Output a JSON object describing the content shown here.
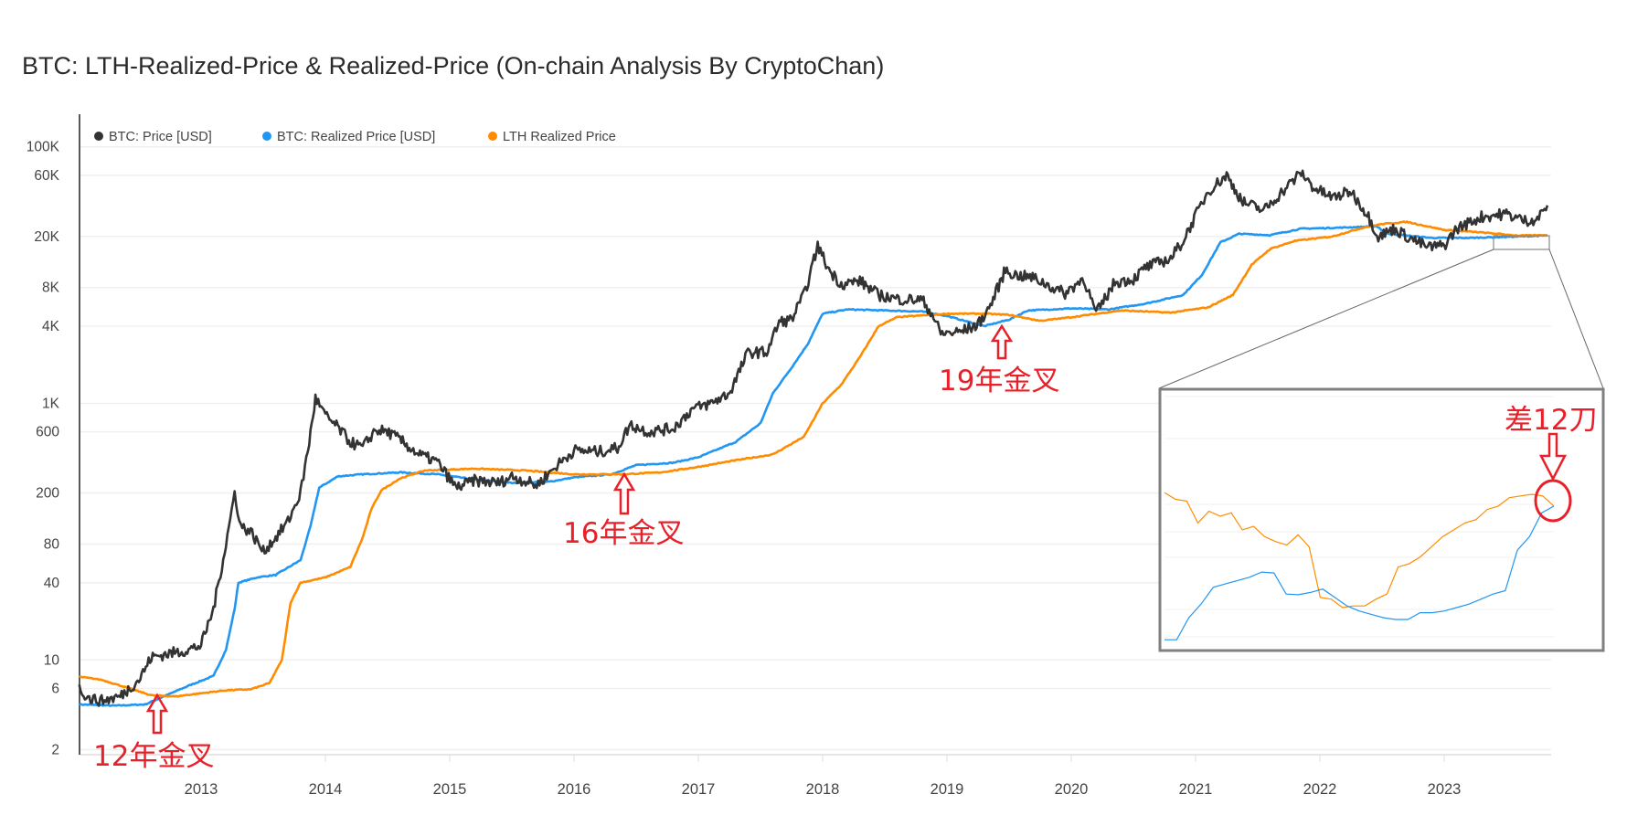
{
  "chart_data": {
    "type": "line",
    "title": "BTC: LTH-Realized-Price & Realized-Price (On-chain Analysis By CryptoChan)",
    "y_scale": "log",
    "ylim": [
      1.7,
      150000
    ],
    "xlim": [
      2012.02,
      2023.86
    ],
    "grid": true,
    "legend_position": "top-left",
    "y_ticks": [
      {
        "label": "100K",
        "value": 100000
      },
      {
        "label": "60K",
        "value": 60000
      },
      {
        "label": "20K",
        "value": 20000
      },
      {
        "label": "8K",
        "value": 8000
      },
      {
        "label": "4K",
        "value": 4000
      },
      {
        "label": "1K",
        "value": 1000
      },
      {
        "label": "600",
        "value": 600
      },
      {
        "label": "200",
        "value": 200
      },
      {
        "label": "80",
        "value": 80
      },
      {
        "label": "40",
        "value": 40
      },
      {
        "label": "10",
        "value": 10
      },
      {
        "label": "6",
        "value": 6
      },
      {
        "label": "2",
        "value": 2
      }
    ],
    "x_ticks": [
      "2013",
      "2014",
      "2015",
      "2016",
      "2017",
      "2018",
      "2019",
      "2020",
      "2021",
      "2022",
      "2023"
    ],
    "series": [
      {
        "name": "BTC: Price [USD]",
        "color": "#333333",
        "points": [
          [
            2012.02,
            6
          ],
          [
            2012.1,
            5
          ],
          [
            2012.2,
            4.8
          ],
          [
            2012.35,
            5.2
          ],
          [
            2012.5,
            7
          ],
          [
            2012.6,
            10.5
          ],
          [
            2012.7,
            11
          ],
          [
            2012.9,
            12
          ],
          [
            2013.0,
            13
          ],
          [
            2013.1,
            25
          ],
          [
            2013.2,
            80
          ],
          [
            2013.27,
            200
          ],
          [
            2013.32,
            110
          ],
          [
            2013.4,
            100
          ],
          [
            2013.5,
            70
          ],
          [
            2013.6,
            90
          ],
          [
            2013.7,
            120
          ],
          [
            2013.8,
            200
          ],
          [
            2013.87,
            500
          ],
          [
            2013.92,
            1100
          ],
          [
            2014.0,
            800
          ],
          [
            2014.1,
            650
          ],
          [
            2014.2,
            500
          ],
          [
            2014.3,
            450
          ],
          [
            2014.4,
            620
          ],
          [
            2014.5,
            600
          ],
          [
            2014.6,
            520
          ],
          [
            2014.75,
            400
          ],
          [
            2014.9,
            350
          ],
          [
            2015.05,
            220
          ],
          [
            2015.2,
            250
          ],
          [
            2015.4,
            240
          ],
          [
            2015.5,
            270
          ],
          [
            2015.7,
            230
          ],
          [
            2015.85,
            320
          ],
          [
            2016.0,
            430
          ],
          [
            2016.2,
            420
          ],
          [
            2016.35,
            450
          ],
          [
            2016.45,
            680
          ],
          [
            2016.6,
            600
          ],
          [
            2016.8,
            640
          ],
          [
            2016.95,
            900
          ],
          [
            2017.1,
            1000
          ],
          [
            2017.25,
            1200
          ],
          [
            2017.4,
            2500
          ],
          [
            2017.55,
            2500
          ],
          [
            2017.65,
            4300
          ],
          [
            2017.75,
            4500
          ],
          [
            2017.85,
            7000
          ],
          [
            2017.92,
            12000
          ],
          [
            2017.96,
            17000
          ],
          [
            2018.05,
            11000
          ],
          [
            2018.15,
            8500
          ],
          [
            2018.3,
            9000
          ],
          [
            2018.45,
            7000
          ],
          [
            2018.6,
            6500
          ],
          [
            2018.8,
            6400
          ],
          [
            2018.88,
            5000
          ],
          [
            2018.95,
            3500
          ],
          [
            2019.1,
            3600
          ],
          [
            2019.25,
            4100
          ],
          [
            2019.35,
            5800
          ],
          [
            2019.47,
            11000
          ],
          [
            2019.55,
            10000
          ],
          [
            2019.7,
            9500
          ],
          [
            2019.85,
            8000
          ],
          [
            2019.95,
            7200
          ],
          [
            2020.1,
            9500
          ],
          [
            2020.2,
            5000
          ],
          [
            2020.35,
            8800
          ],
          [
            2020.5,
            9300
          ],
          [
            2020.6,
            11500
          ],
          [
            2020.8,
            13500
          ],
          [
            2020.9,
            18500
          ],
          [
            2021.0,
            29000
          ],
          [
            2021.1,
            45000
          ],
          [
            2021.25,
            60000
          ],
          [
            2021.38,
            37000
          ],
          [
            2021.55,
            32000
          ],
          [
            2021.7,
            45000
          ],
          [
            2021.85,
            63000
          ],
          [
            2021.95,
            48000
          ],
          [
            2022.1,
            40000
          ],
          [
            2022.25,
            45000
          ],
          [
            2022.38,
            30000
          ],
          [
            2022.47,
            20000
          ],
          [
            2022.6,
            23000
          ],
          [
            2022.72,
            19500
          ],
          [
            2022.87,
            16500
          ],
          [
            2023.0,
            17000
          ],
          [
            2023.1,
            23000
          ],
          [
            2023.3,
            28500
          ],
          [
            2023.5,
            30000
          ],
          [
            2023.65,
            26500
          ],
          [
            2023.75,
            27500
          ],
          [
            2023.83,
            35000
          ]
        ]
      },
      {
        "name": "BTC: Realized Price [USD]",
        "color": "#2196f3",
        "points": [
          [
            2012.02,
            4.5
          ],
          [
            2012.3,
            4.4
          ],
          [
            2012.55,
            4.5
          ],
          [
            2012.7,
            5.2
          ],
          [
            2012.9,
            6.3
          ],
          [
            2013.1,
            7.5
          ],
          [
            2013.2,
            12
          ],
          [
            2013.27,
            25
          ],
          [
            2013.3,
            40
          ],
          [
            2013.45,
            44
          ],
          [
            2013.6,
            46
          ],
          [
            2013.8,
            60
          ],
          [
            2013.88,
            110
          ],
          [
            2013.95,
            220
          ],
          [
            2014.1,
            270
          ],
          [
            2014.3,
            280
          ],
          [
            2014.6,
            290
          ],
          [
            2014.9,
            280
          ],
          [
            2015.2,
            255
          ],
          [
            2015.5,
            240
          ],
          [
            2015.8,
            245
          ],
          [
            2016.0,
            265
          ],
          [
            2016.3,
            280
          ],
          [
            2016.5,
            330
          ],
          [
            2016.8,
            345
          ],
          [
            2017.0,
            380
          ],
          [
            2017.3,
            500
          ],
          [
            2017.5,
            700
          ],
          [
            2017.6,
            1200
          ],
          [
            2017.75,
            1900
          ],
          [
            2017.88,
            2900
          ],
          [
            2018.0,
            5000
          ],
          [
            2018.2,
            5400
          ],
          [
            2018.5,
            5300
          ],
          [
            2018.8,
            5200
          ],
          [
            2019.0,
            4800
          ],
          [
            2019.3,
            4000
          ],
          [
            2019.5,
            4500
          ],
          [
            2019.65,
            5300
          ],
          [
            2020.0,
            5500
          ],
          [
            2020.3,
            5400
          ],
          [
            2020.6,
            6000
          ],
          [
            2020.9,
            7000
          ],
          [
            2021.05,
            10000
          ],
          [
            2021.2,
            18000
          ],
          [
            2021.35,
            21000
          ],
          [
            2021.6,
            20500
          ],
          [
            2021.85,
            23000
          ],
          [
            2022.2,
            23500
          ],
          [
            2022.45,
            24000
          ],
          [
            2022.55,
            21000
          ],
          [
            2022.9,
            19500
          ],
          [
            2023.2,
            19500
          ],
          [
            2023.6,
            20000
          ],
          [
            2023.83,
            20400
          ]
        ]
      },
      {
        "name": "LTH Realized Price",
        "color": "#ff8c00",
        "points": [
          [
            2012.02,
            7.4
          ],
          [
            2012.2,
            7
          ],
          [
            2012.4,
            6.1
          ],
          [
            2012.6,
            5.3
          ],
          [
            2012.8,
            5.2
          ],
          [
            2013.0,
            5.5
          ],
          [
            2013.2,
            5.8
          ],
          [
            2013.4,
            5.9
          ],
          [
            2013.55,
            6.6
          ],
          [
            2013.65,
            10
          ],
          [
            2013.72,
            28
          ],
          [
            2013.8,
            40
          ],
          [
            2014.0,
            44
          ],
          [
            2014.2,
            53
          ],
          [
            2014.3,
            90
          ],
          [
            2014.37,
            150
          ],
          [
            2014.45,
            210
          ],
          [
            2014.6,
            260
          ],
          [
            2014.8,
            300
          ],
          [
            2015.2,
            310
          ],
          [
            2015.6,
            300
          ],
          [
            2016.0,
            280
          ],
          [
            2016.4,
            280
          ],
          [
            2016.7,
            290
          ],
          [
            2017.0,
            320
          ],
          [
            2017.3,
            360
          ],
          [
            2017.6,
            400
          ],
          [
            2017.85,
            550
          ],
          [
            2018.0,
            1000
          ],
          [
            2018.15,
            1400
          ],
          [
            2018.3,
            2300
          ],
          [
            2018.45,
            4000
          ],
          [
            2018.6,
            4700
          ],
          [
            2019.0,
            5000
          ],
          [
            2019.3,
            5000
          ],
          [
            2019.5,
            4900
          ],
          [
            2019.75,
            4400
          ],
          [
            2020.0,
            4700
          ],
          [
            2020.4,
            5300
          ],
          [
            2020.8,
            5100
          ],
          [
            2021.1,
            5600
          ],
          [
            2021.3,
            7000
          ],
          [
            2021.45,
            12000
          ],
          [
            2021.6,
            16000
          ],
          [
            2021.8,
            18500
          ],
          [
            2022.1,
            20000
          ],
          [
            2022.35,
            23500
          ],
          [
            2022.5,
            25000
          ],
          [
            2022.7,
            26000
          ],
          [
            2023.0,
            22500
          ],
          [
            2023.3,
            21500
          ],
          [
            2023.6,
            20300
          ],
          [
            2023.83,
            20500
          ]
        ]
      }
    ],
    "inset": {
      "series": [
        {
          "name": "LTH Realized Price",
          "color": "#ff8c00",
          "values": [
            20502,
            20470,
            20462,
            20358,
            20414,
            20390,
            20406,
            20326,
            20342,
            20294,
            20270,
            20254,
            20302,
            20246,
            20006,
            19998,
            19958,
            19966,
            19966,
            19998,
            20022,
            20150,
            20166,
            20198,
            20246,
            20294,
            20326,
            20358,
            20374,
            20422,
            20438,
            20478,
            20486,
            20494,
            20486,
            20438
          ]
        },
        {
          "name": "BTC: Realized Price [USD]",
          "color": "#2196f3",
          "values": [
            19806,
            19806,
            19910,
            19974,
            20054,
            20070,
            20086,
            20102,
            20126,
            20122,
            20022,
            20019,
            20030,
            20046,
            20006,
            19966,
            19942,
            19926,
            19910,
            19902,
            19902,
            19934,
            19934,
            19942,
            19958,
            19974,
            19998,
            20022,
            20038,
            20230,
            20294,
            20406,
            20438
          ]
        }
      ]
    },
    "annotations": [
      {
        "text": "12年金叉",
        "date": 2012.62
      },
      {
        "text": "16年金叉",
        "date": 2016.4
      },
      {
        "text": "19年金叉",
        "date": 2019.45
      },
      {
        "text": "差12刀"
      }
    ],
    "annotation_color": "#e8202a"
  }
}
